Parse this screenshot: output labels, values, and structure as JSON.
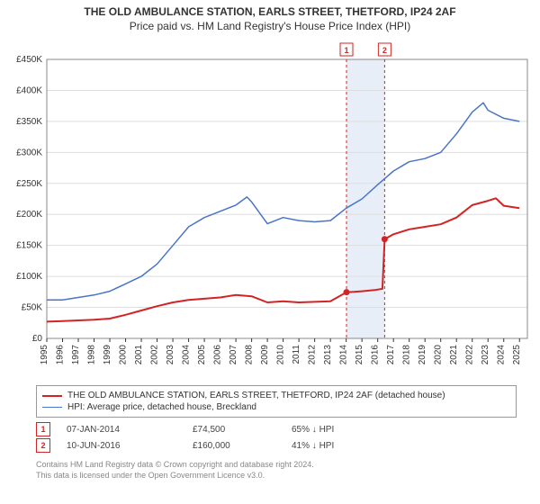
{
  "title_line1": "THE OLD AMBULANCE STATION, EARLS STREET, THETFORD, IP24 2AF",
  "title_line2": "Price paid vs. HM Land Registry's House Price Index (HPI)",
  "chart": {
    "type": "line",
    "background_color": "#ffffff",
    "plot_border_color": "#888888",
    "grid_color": "#dddddd",
    "x": {
      "min": 1995,
      "max": 2025.5,
      "ticks": [
        1995,
        1996,
        1997,
        1998,
        1999,
        2000,
        2001,
        2002,
        2003,
        2004,
        2005,
        2006,
        2007,
        2008,
        2009,
        2010,
        2011,
        2012,
        2013,
        2014,
        2015,
        2016,
        2017,
        2018,
        2019,
        2020,
        2021,
        2022,
        2023,
        2024,
        2025
      ],
      "label_rotation": -90,
      "label_fontsize": 10
    },
    "y": {
      "min": 0,
      "max": 450000,
      "ticks": [
        0,
        50000,
        100000,
        150000,
        200000,
        250000,
        300000,
        350000,
        400000,
        450000
      ],
      "tick_labels": [
        "£0",
        "£50K",
        "£100K",
        "£150K",
        "£200K",
        "£250K",
        "£300K",
        "£350K",
        "£400K",
        "£450K"
      ],
      "label_fontsize": 10
    },
    "highlight_band": {
      "x_from": 2014.02,
      "x_to": 2016.44,
      "fill": "#e8eef7"
    },
    "series": [
      {
        "name": "THE OLD AMBULANCE STATION, EARLS STREET, THETFORD, IP24 2AF (detached house)",
        "color": "#d22424",
        "line_width": 2,
        "points": [
          [
            1995,
            27000
          ],
          [
            1996,
            28000
          ],
          [
            1997,
            29000
          ],
          [
            1998,
            30000
          ],
          [
            1999,
            32000
          ],
          [
            2000,
            38000
          ],
          [
            2001,
            45000
          ],
          [
            2002,
            52000
          ],
          [
            2003,
            58000
          ],
          [
            2004,
            62000
          ],
          [
            2005,
            64000
          ],
          [
            2006,
            66000
          ],
          [
            2007,
            70000
          ],
          [
            2008,
            68000
          ],
          [
            2009,
            58000
          ],
          [
            2010,
            60000
          ],
          [
            2011,
            58000
          ],
          [
            2012,
            59000
          ],
          [
            2013,
            60000
          ],
          [
            2014.02,
            74500
          ],
          [
            2014.5,
            75000
          ],
          [
            2015,
            76000
          ],
          [
            2015.8,
            78000
          ],
          [
            2016.3,
            80000
          ],
          [
            2016.44,
            160000
          ],
          [
            2017,
            168000
          ],
          [
            2018,
            176000
          ],
          [
            2019,
            180000
          ],
          [
            2020,
            184000
          ],
          [
            2021,
            195000
          ],
          [
            2022,
            215000
          ],
          [
            2023,
            222000
          ],
          [
            2023.5,
            226000
          ],
          [
            2024,
            214000
          ],
          [
            2025,
            210000
          ]
        ]
      },
      {
        "name": "HPI: Average price, detached house, Breckland",
        "color": "#4a74c9",
        "line_width": 1.5,
        "points": [
          [
            1995,
            62000
          ],
          [
            1996,
            62000
          ],
          [
            1997,
            66000
          ],
          [
            1998,
            70000
          ],
          [
            1999,
            76000
          ],
          [
            2000,
            88000
          ],
          [
            2001,
            100000
          ],
          [
            2002,
            120000
          ],
          [
            2003,
            150000
          ],
          [
            2004,
            180000
          ],
          [
            2005,
            195000
          ],
          [
            2006,
            205000
          ],
          [
            2007,
            215000
          ],
          [
            2007.7,
            228000
          ],
          [
            2008,
            220000
          ],
          [
            2009,
            185000
          ],
          [
            2010,
            195000
          ],
          [
            2011,
            190000
          ],
          [
            2012,
            188000
          ],
          [
            2013,
            190000
          ],
          [
            2014,
            210000
          ],
          [
            2015,
            225000
          ],
          [
            2016,
            248000
          ],
          [
            2017,
            270000
          ],
          [
            2018,
            285000
          ],
          [
            2019,
            290000
          ],
          [
            2020,
            300000
          ],
          [
            2021,
            330000
          ],
          [
            2022,
            365000
          ],
          [
            2022.7,
            380000
          ],
          [
            2023,
            368000
          ],
          [
            2024,
            355000
          ],
          [
            2025,
            350000
          ]
        ]
      }
    ],
    "markers": [
      {
        "label": "1",
        "x": 2014.02,
        "y": 74500,
        "color": "#d22424",
        "line_dash": "3,3"
      },
      {
        "label": "2",
        "x": 2016.44,
        "y": 160000,
        "color": "#d22424",
        "line_dash": "3,3"
      }
    ]
  },
  "legend": {
    "items": [
      {
        "color": "#d22424",
        "line_width": 2,
        "label": "THE OLD AMBULANCE STATION, EARLS STREET, THETFORD, IP24 2AF (detached house)"
      },
      {
        "color": "#4a74c9",
        "line_width": 1.5,
        "label": "HPI: Average price, detached house, Breckland"
      }
    ]
  },
  "transactions": [
    {
      "marker": "1",
      "marker_color": "#d22424",
      "date": "07-JAN-2014",
      "price": "£74,500",
      "pct": "65% ↓ HPI"
    },
    {
      "marker": "2",
      "marker_color": "#d22424",
      "date": "10-JUN-2016",
      "price": "£160,000",
      "pct": "41% ↓ HPI"
    }
  ],
  "footer": {
    "line1": "Contains HM Land Registry data © Crown copyright and database right 2024.",
    "line2": "This data is licensed under the Open Government Licence v3.0."
  }
}
